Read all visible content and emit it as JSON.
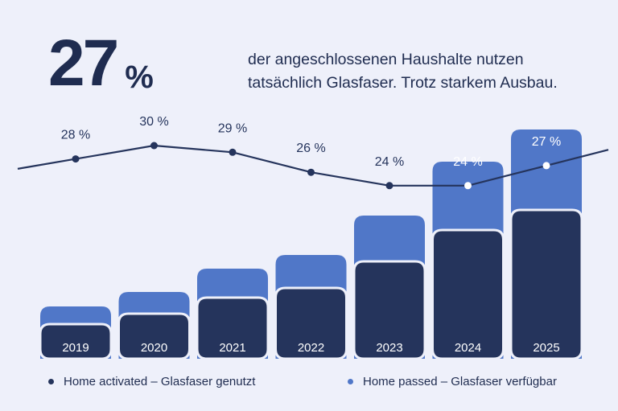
{
  "headline": {
    "number": "27",
    "unit": "%",
    "text": "der angeschlossenen Haushalte nutzen tatsächlich Glasfaser. Trotz starkem Ausbau."
  },
  "colors": {
    "activated": "#25345c",
    "passed": "#5077c8",
    "line": "#25345c",
    "background": "#eef0fa"
  },
  "chart_data": {
    "type": "bar",
    "categories": [
      "2019",
      "2020",
      "2021",
      "2022",
      "2023",
      "2024",
      "2025"
    ],
    "series": [
      {
        "name": "Home activated – Glasfaser genutzt",
        "values": [
          43,
          56,
          76,
          88,
          121,
          160,
          185
        ]
      },
      {
        "name": "Home passed – Glasfaser verfügbar",
        "values": [
          65,
          83,
          112,
          129,
          178,
          245,
          285
        ]
      }
    ],
    "take_up_rate_labels": [
      "28 %",
      "30 %",
      "29 %",
      "26 %",
      "24 %",
      "24 %",
      "27 %"
    ],
    "take_up_rate_values": [
      28,
      30,
      29,
      26,
      24,
      24,
      27
    ],
    "legend_position": "bottom",
    "grid": false
  },
  "legend": [
    {
      "label": "Home activated – Glasfaser genutzt",
      "color": "#25345c"
    },
    {
      "label": "Home passed – Glasfaser verfügbar",
      "color": "#5077c8"
    }
  ]
}
